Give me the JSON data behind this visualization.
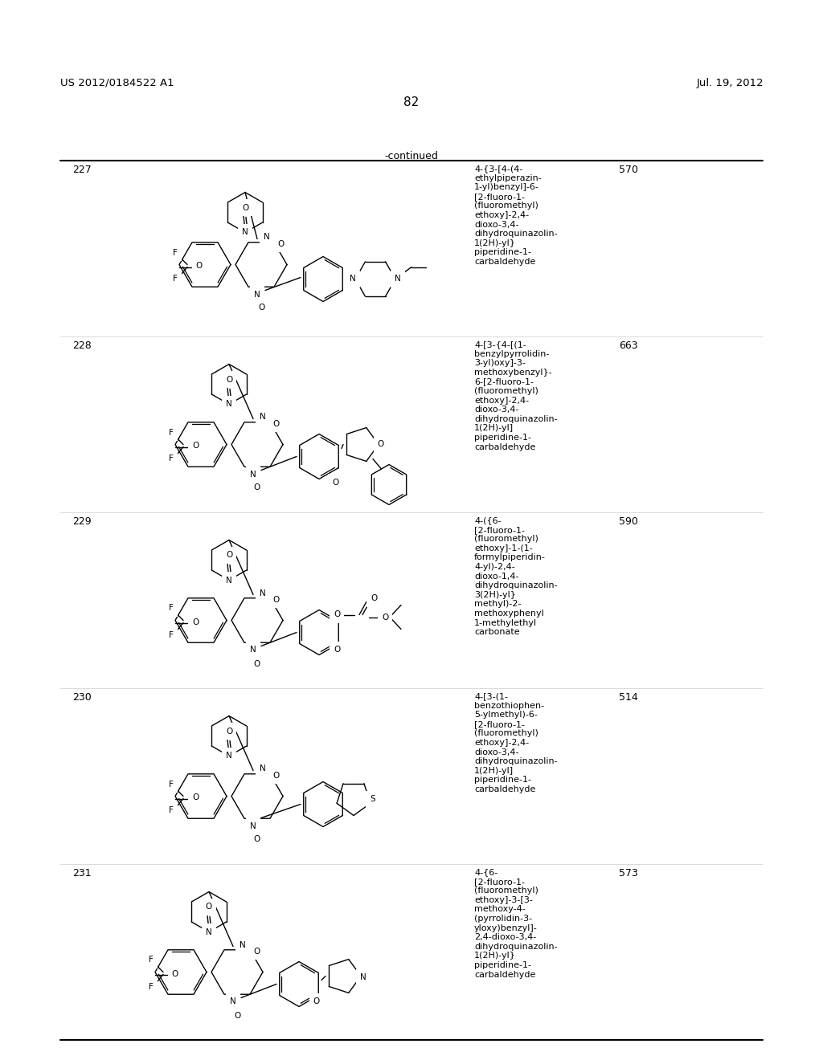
{
  "background_color": "#ffffff",
  "header_left": "US 2012/0184522 A1",
  "header_right": "Jul. 19, 2012",
  "page_number": "82",
  "continued_text": "-continued",
  "compounds": [
    {
      "number": "227",
      "mw": "570",
      "name": "4-{3-[4-(4-\nethylpiperazin-\n1-yl)benzyl]-6-\n[2-fluoro-1-\n(fluoromethyl)\nethoxy]-2,4-\ndioxo-3,4-\ndihydroquinazolin-\n1(2H)-yl}\npiperidine-1-\ncarbaldehyde"
    },
    {
      "number": "228",
      "mw": "663",
      "name": "4-[3-{4-[(1-\nbenzylpyrrolidin-\n3-yl)oxy]-3-\nmethoxybenzyl}-\n6-[2-fluoro-1-\n(fluoromethyl)\nethoxy]-2,4-\ndioxo-3,4-\ndihydroquinazolin-\n1(2H)-yl]\npiperidine-1-\ncarbaldehyde"
    },
    {
      "number": "229",
      "mw": "590",
      "name": "4-({6-\n[2-fluoro-1-\n(fluoromethyl)\nethoxy]-1-(1-\nformylpiperidin-\n4-yl)-2,4-\ndioxo-1,4-\ndihydroquinazolin-\n3(2H)-yl}\nmethyl)-2-\nmethoxyphenyl\n1-methylethyl\ncarbonate"
    },
    {
      "number": "230",
      "mw": "514",
      "name": "4-[3-(1-\nbenzothiophen-\n5-ylmethyl)-6-\n[2-fluoro-1-\n(fluoromethyl)\nethoxy]-2,4-\ndioxo-3,4-\ndihydroquinazolin-\n1(2H)-yl]\npiperidine-1-\ncarbaldehyde"
    },
    {
      "number": "231",
      "mw": "573",
      "name": "4-{6-\n[2-fluoro-1-\n(fluoromethyl)\nethoxy]-3-[3-\nmethoxy-4-\n(pyrrolidin-3-\nyloxy)benzyl]-\n2,4-dioxo-3,4-\ndihydroquinazolin-\n1(2H)-yl}\npiperidine-1-\ncarbaldehyde"
    }
  ]
}
